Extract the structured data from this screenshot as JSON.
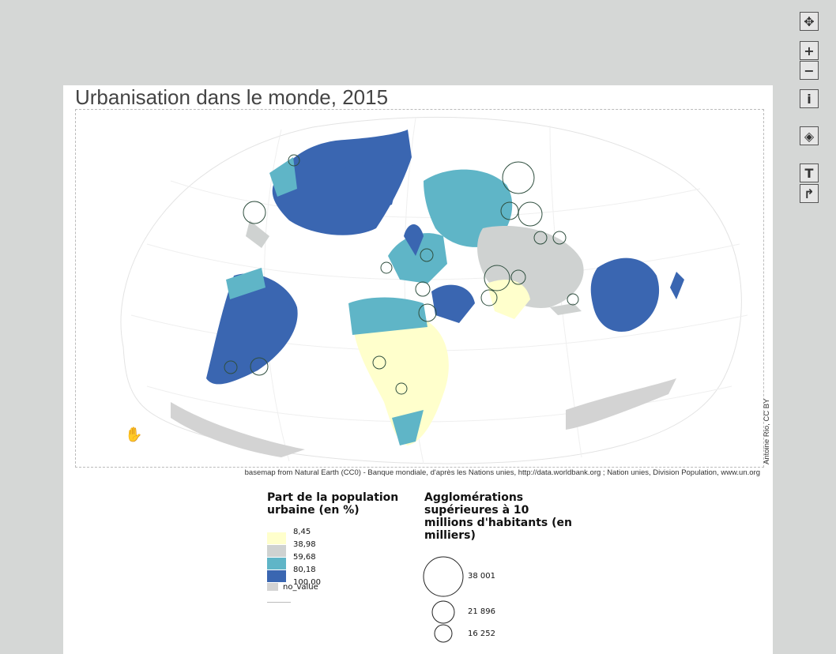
{
  "map": {
    "title": "Urbanisation dans le monde, 2015",
    "credit": "basemap from Natural Earth (CC0) - Banque mondiale, d'après les Nations unies, http://data.worldbank.org ; Nation unies, Division Population, www.un.org",
    "author": "Antoine Rio, CC BY",
    "colors": {
      "class1": "#ffffcc",
      "class2": "#cfd2d1",
      "class3": "#5fb5c7",
      "class4": "#3a66b1",
      "nodata": "#d3d3d3",
      "ocean": "#ffffff",
      "circle_stroke": "#2f4f3f"
    }
  },
  "legend_choro": {
    "title_line1": "Part de la population",
    "title_line2": "urbaine (en %)",
    "breaks": [
      "8,45",
      "38,98",
      "59,68",
      "80,18",
      "100,00"
    ],
    "nodata_label": "no_value"
  },
  "legend_prop": {
    "title_line1": "Agglomérations",
    "title_line2": "supérieures à 10",
    "title_line3": "millions d'habitants (en",
    "title_line4": "milliers)",
    "values": [
      "38 001",
      "21 896",
      "16 252"
    ]
  },
  "toolbar": {
    "buttons": [
      {
        "name": "pan-icon",
        "glyph": "✥"
      },
      {
        "name": "zoom-in-icon",
        "glyph": "+"
      },
      {
        "name": "zoom-out-icon",
        "glyph": "−"
      },
      {
        "name": "info-icon",
        "glyph": "i"
      },
      {
        "name": "layers-icon",
        "glyph": "◈"
      },
      {
        "name": "text-icon",
        "glyph": "T"
      },
      {
        "name": "share-icon",
        "glyph": "↱"
      }
    ]
  }
}
